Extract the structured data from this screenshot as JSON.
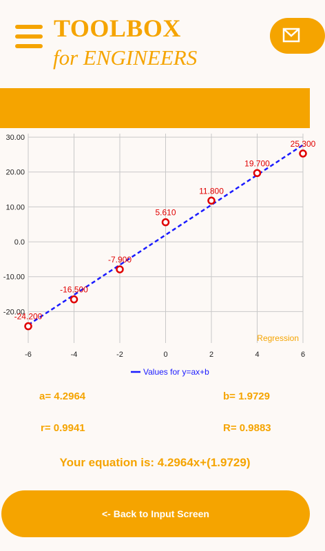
{
  "header": {
    "title_line1": "TOOLBOX",
    "title_line2": "for ENGINEERS",
    "menu_icon": "hamburger-icon",
    "mail_icon": "mail-icon"
  },
  "colors": {
    "accent": "#f5a400",
    "background": "#fdf9f6",
    "points": "#e00000",
    "regression_line": "#1a1aff",
    "grid": "#c8c8c8"
  },
  "chart_data": {
    "type": "scatter",
    "x": [
      -6,
      -4,
      -2,
      0,
      2,
      4,
      6
    ],
    "series": [
      {
        "values": [
          -24.2,
          -16.5,
          -7.9,
          5.61,
          11.8,
          19.7,
          25.3
        ],
        "point_labels": [
          "-24.200",
          "-16.500",
          "-7.900",
          "5.610",
          "11.800",
          "19.700",
          "25.300"
        ]
      },
      {
        "name": "Values for y=ax+b",
        "type": "line",
        "slope": 4.2964,
        "intercept": 1.9729
      }
    ],
    "x_ticks": [
      "-6",
      "-4",
      "-2",
      "0",
      "2",
      "4",
      "6"
    ],
    "y_ticks": [
      "30.00",
      "20.00",
      "10.00",
      "0.0",
      "-10.00",
      "-20.00"
    ],
    "y_tick_values": [
      30,
      20,
      10,
      0,
      -10,
      -20
    ],
    "xlim": [
      -6,
      6
    ],
    "ylim": [
      -29,
      31
    ],
    "description_label": "Regression",
    "legend_label": "Values for y=ax+b",
    "legend_position": "bottom-center",
    "grid": true
  },
  "results": {
    "a": "a= 4.2964",
    "b": "b= 1.9729",
    "r": "r= 0.9941",
    "R": "R= 0.9883",
    "equation": "Your equation is: 4.2964x+(1.9729)"
  },
  "buttons": {
    "back": "<- Back to Input Screen"
  }
}
